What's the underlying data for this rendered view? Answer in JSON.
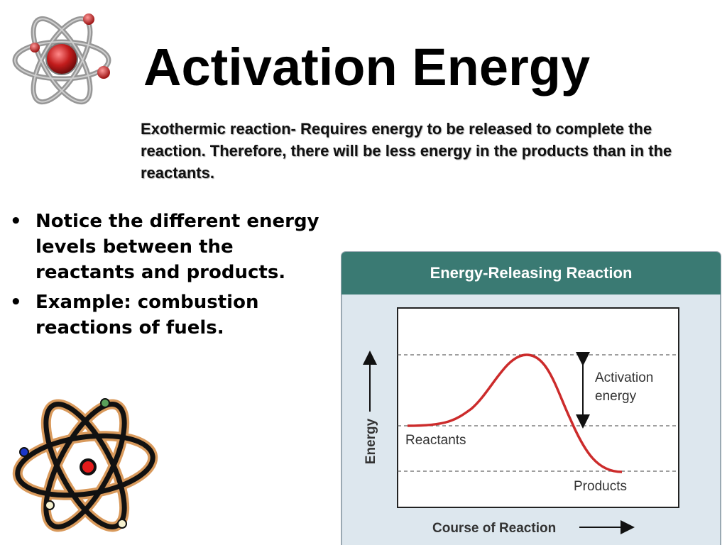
{
  "slide": {
    "title": "Activation Energy",
    "subtitle": "Exothermic reaction- Requires energy to be released  to complete the reaction. Therefore, there will be less energy in the products than in the reactants.",
    "bullets": [
      "Notice the different energy levels between the reactants and products.",
      "Example: combustion reactions of fuels."
    ],
    "icons": [
      "atom-icon",
      "atom-cartoon-icon"
    ]
  },
  "diagram": {
    "header": "Energy-Releasing Reaction",
    "y_axis_label": "Energy",
    "x_axis_label": "Course of Reaction",
    "reactants_label": "Reactants",
    "products_label": "Products",
    "activation_label_line1": "Activation",
    "activation_label_line2": "energy",
    "colors": {
      "header_bg": "#3a7a73",
      "panel_bg": "#dde7ee",
      "curve": "#cc2b2b"
    }
  }
}
